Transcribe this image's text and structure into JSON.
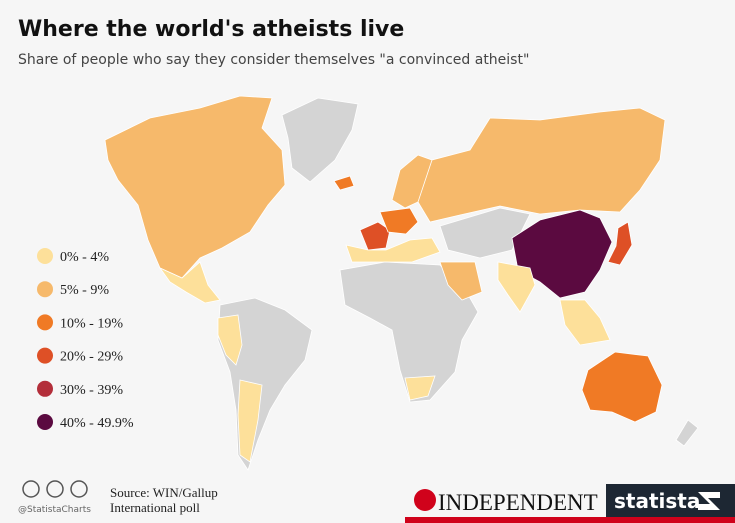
{
  "title": "Where the world's atheists live",
  "subtitle": "Share of people who say they consider themselves \"a convinced atheist\"",
  "legend": [
    {
      "label": "0% - 4%",
      "color": "#fde09a"
    },
    {
      "label": "5% - 9%",
      "color": "#f6b96b"
    },
    {
      "label": "10% - 19%",
      "color": "#f07a25"
    },
    {
      "label": "20% - 29%",
      "color": "#de5026"
    },
    {
      "label": "30% - 39%",
      "color": "#b32e3a"
    },
    {
      "label": "40% - 49.9%",
      "color": "#5b0a40"
    }
  ],
  "no_data_color": "#d4d4d4",
  "source": [
    "Source: WIN/Gallup",
    "International poll"
  ],
  "handle": "@StatistaCharts",
  "brands": [
    "INDEPENDENT",
    "statista"
  ]
}
